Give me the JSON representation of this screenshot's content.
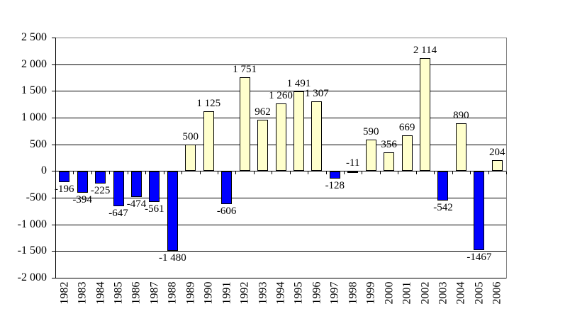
{
  "chart_data": {
    "type": "bar",
    "title": "",
    "xlabel": "",
    "ylabel": "",
    "categories": [
      "1982",
      "1983",
      "1984",
      "1985",
      "1986",
      "1987",
      "1988",
      "1989",
      "1990",
      "1991",
      "1992",
      "1993",
      "1994",
      "1995",
      "1996",
      "1997",
      "1998",
      "1999",
      "2000",
      "2001",
      "2002",
      "2003",
      "2004",
      "2005",
      "2006"
    ],
    "values": [
      -196,
      -394,
      -225,
      -647,
      -474,
      -561,
      -1480,
      500,
      1125,
      -606,
      1751,
      962,
      1260,
      1491,
      1307,
      -128,
      -11,
      590,
      356,
      669,
      2114,
      -542,
      890,
      -1467,
      204
    ],
    "labels": [
      "-196",
      "-394",
      "-225",
      "-647",
      "-474",
      "-561",
      "-1 480",
      "500",
      "1 125",
      "-606",
      "1 751",
      "962",
      "1 260",
      "1 491",
      "1 307",
      "-128",
      "-11",
      "590",
      "356",
      "669",
      "2 114",
      "-542",
      "890",
      "-1467",
      "204"
    ],
    "label_above_axis_indices": [
      16
    ],
    "ylim": [
      -2000,
      2500
    ],
    "ytick_values": [
      2500,
      2000,
      1500,
      1000,
      500,
      0,
      -500,
      -1000,
      -1500,
      -2000
    ],
    "ytick_labels": [
      "2 500",
      "2 000",
      "1 500",
      "1 000",
      "500",
      "0",
      "-500",
      "-1 000",
      "-1 500",
      "-2 000"
    ],
    "grid": true,
    "legend": false,
    "positive_color": "#FFFFCC",
    "negative_color": "#0000FF",
    "bar_border_color": "#000000",
    "gridline_color": "#000000",
    "axis_color": "#000000",
    "plot_border_color": "#808080",
    "background_color": "#FFFFFF"
  }
}
